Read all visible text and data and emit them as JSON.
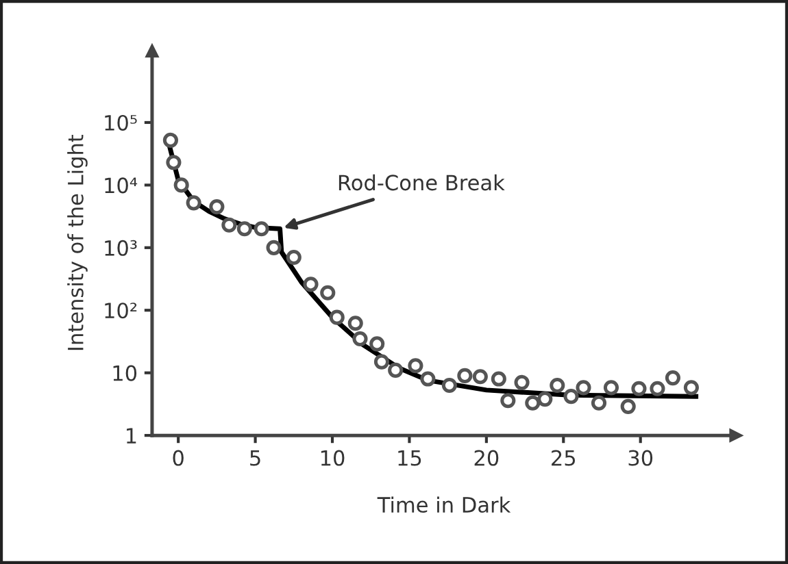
{
  "chart_data": {
    "type": "scatter",
    "xlabel": "Time in Dark",
    "ylabel": "Intensity of the Light",
    "log": "y",
    "xlim": [
      -1.7,
      36.2
    ],
    "ylim": [
      1,
      1400000
    ],
    "xticks": [
      0,
      5,
      10,
      15,
      20,
      25,
      30
    ],
    "yticks": [
      1,
      10,
      {
        "value": 100,
        "label": "10²"
      },
      {
        "value": 1000,
        "label": "10³"
      },
      {
        "value": 10000,
        "label": "10⁴"
      },
      {
        "value": 100000,
        "label": "10⁵"
      }
    ],
    "grid": false,
    "legend": false,
    "series": [
      {
        "color": "#555555",
        "marker": "circle",
        "x": [
          -0.5,
          -0.3,
          0.2,
          1.0,
          2.5,
          3.3,
          4.3,
          5.4,
          6.2,
          7.5,
          8.6,
          9.7,
          10.3,
          11.5,
          11.8,
          12.9,
          13.2,
          14.1,
          15.4,
          16.2,
          17.6,
          18.6,
          19.6,
          20.8,
          21.4,
          22.3,
          23.0,
          23.8,
          24.6,
          25.5,
          26.3,
          27.3,
          28.1,
          29.2,
          29.9,
          31.1,
          32.1,
          33.3
        ],
        "values": [
          52000,
          23000,
          10000,
          5200,
          4500,
          2300,
          2000,
          2000,
          1000,
          700,
          260,
          190,
          77,
          62,
          35,
          29,
          15,
          11,
          13,
          8,
          6.3,
          9,
          8.7,
          8,
          3.6,
          7,
          3.3,
          3.8,
          6.3,
          4.2,
          5.8,
          3.3,
          5.8,
          2.9,
          5.6,
          5.6,
          8.3,
          5.8
        ]
      },
      {
        "type": "line",
        "color": "#000000",
        "marker": "none",
        "line_style": "solid",
        "x": [
          -0.6,
          0,
          1,
          2,
          3,
          4,
          5,
          6.6,
          6.7,
          8,
          10,
          12,
          14.3,
          16.2,
          20,
          25.4,
          33.6
        ],
        "values": [
          45000,
          12000,
          5500,
          3800,
          2900,
          2400,
          2100,
          2000,
          850,
          280,
          77,
          28,
          12,
          7.6,
          5.3,
          4.4,
          4.2
        ]
      }
    ],
    "annotations": [
      {
        "text": "Rod-Cone Break",
        "x": 6.6,
        "y": 2000
      }
    ]
  }
}
